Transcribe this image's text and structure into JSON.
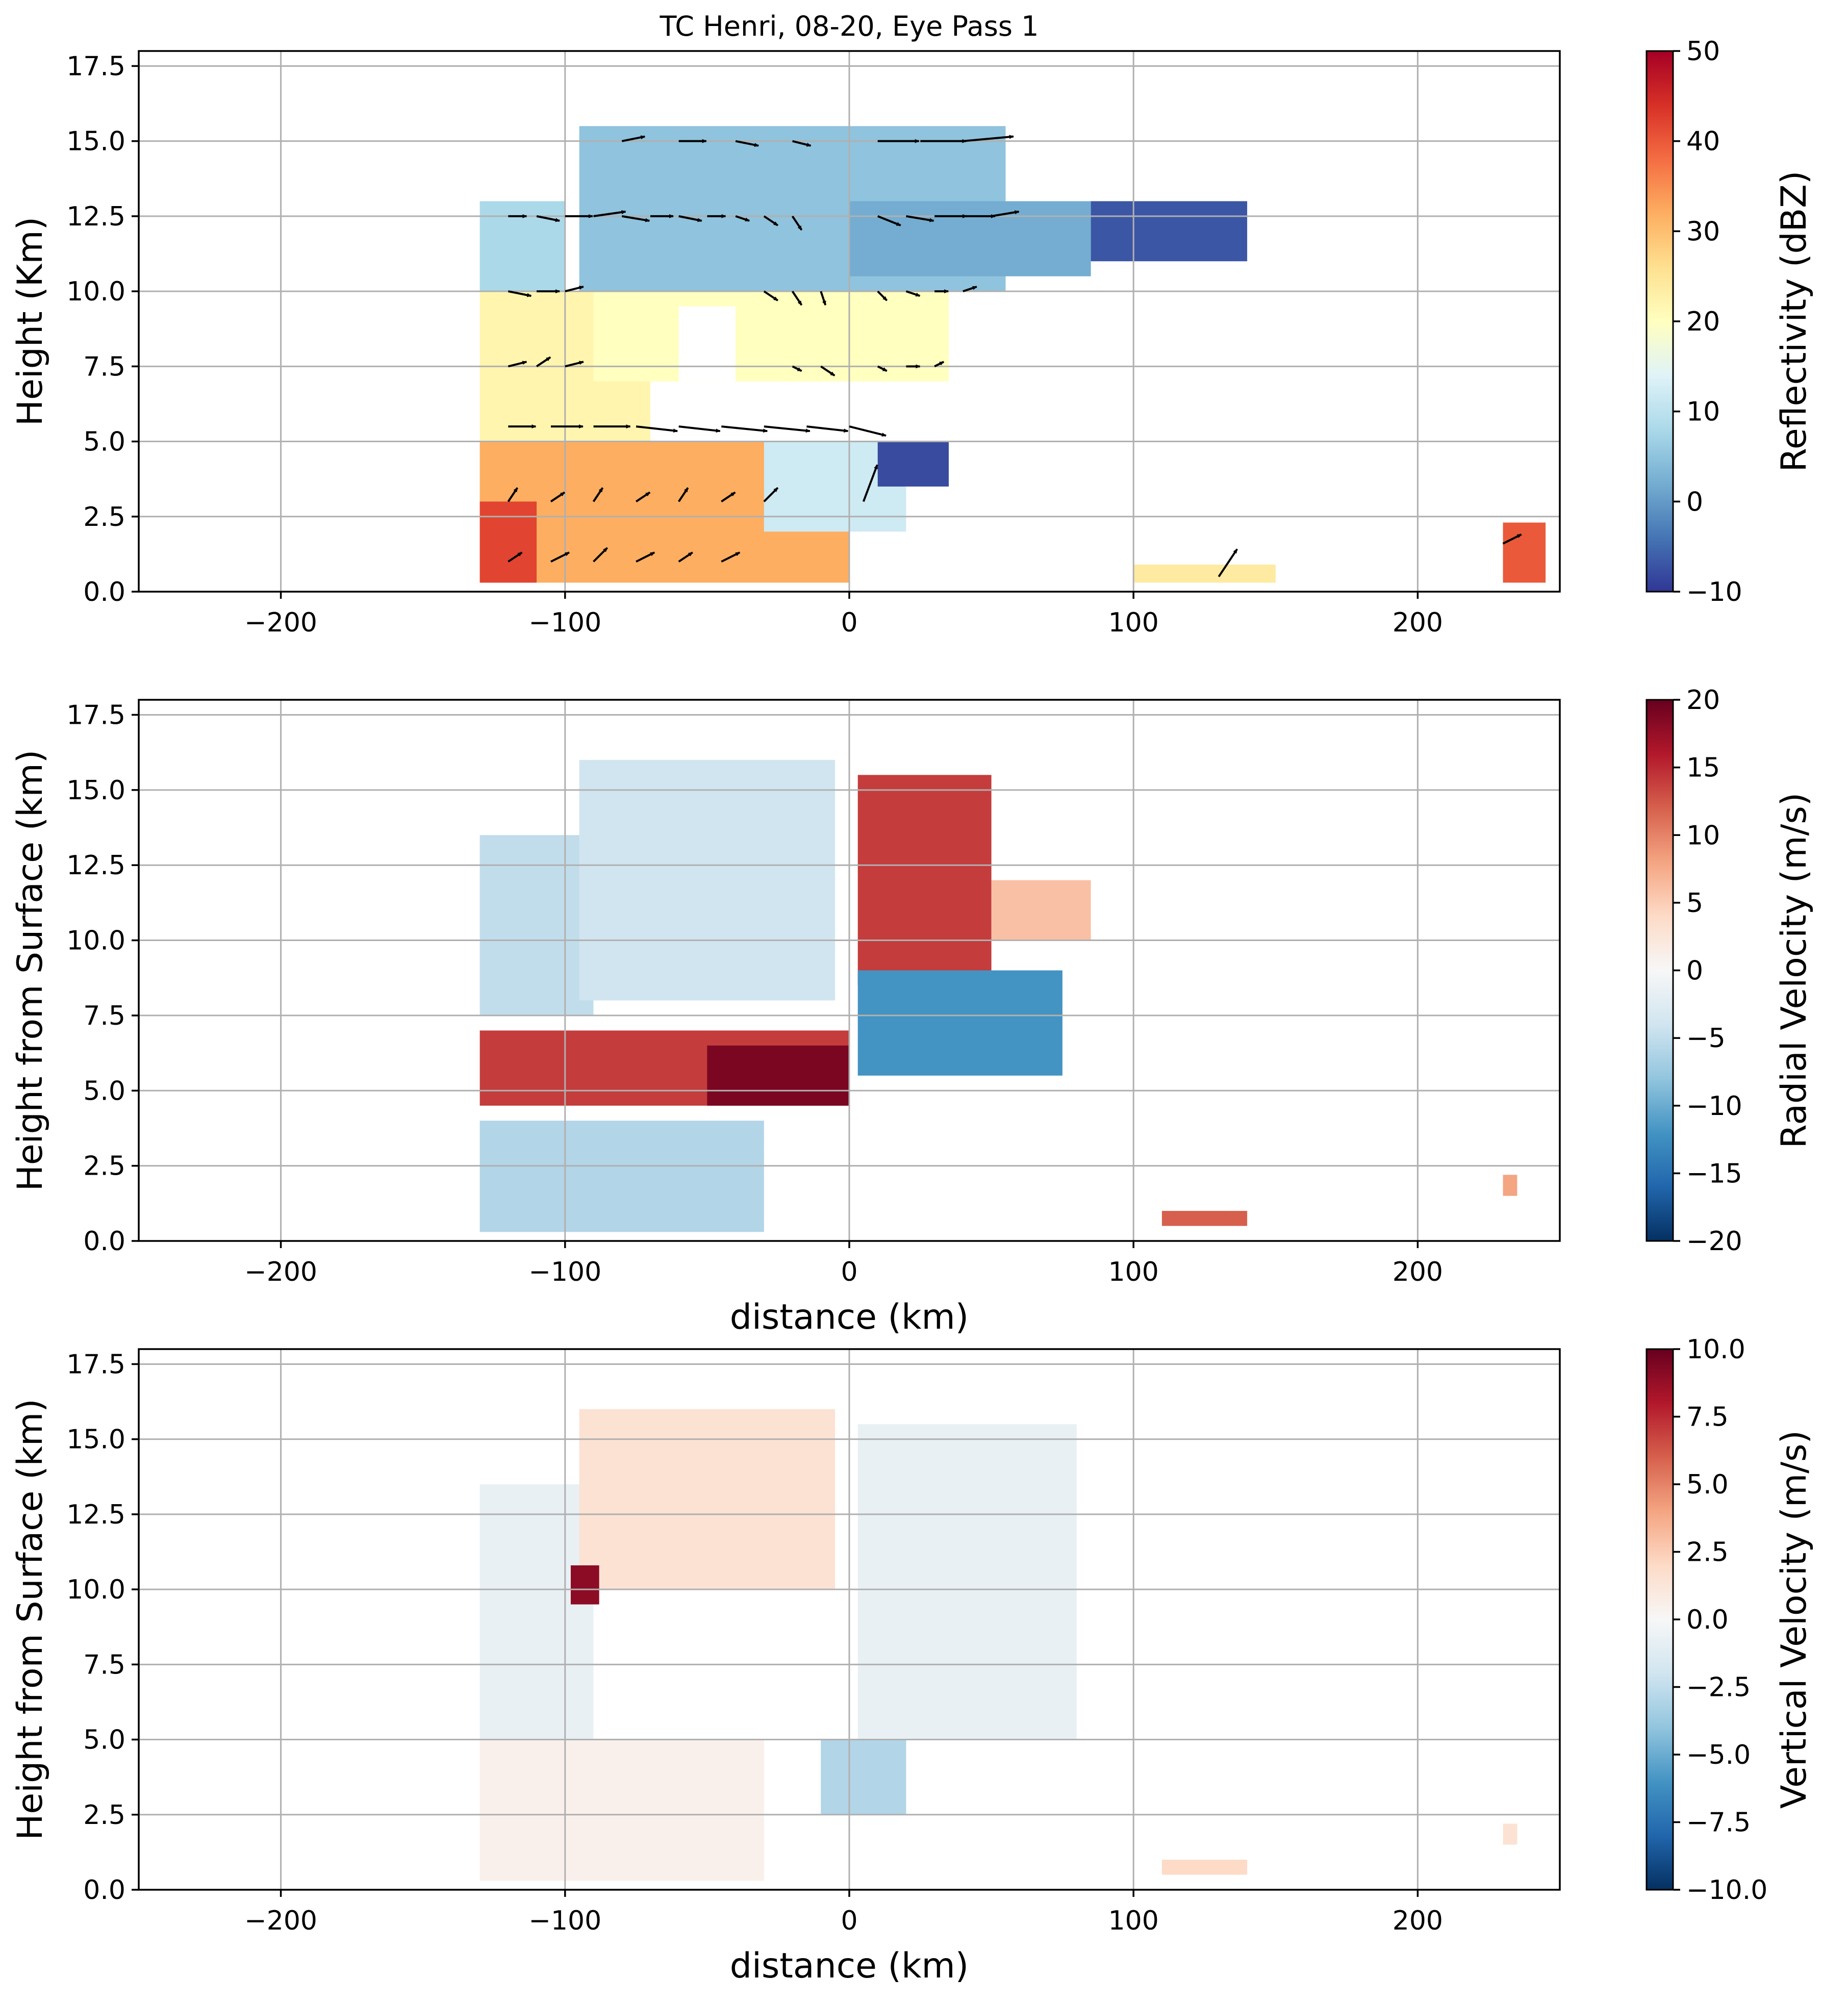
{
  "chart_data": [
    {
      "type": "heatmap",
      "title": "TC Henri, 08-20, Eye Pass 1",
      "xlabel": "",
      "ylabel": "Height (Km)",
      "xlim": [
        -250,
        250
      ],
      "ylim": [
        0,
        18
      ],
      "xticks": [
        -200,
        -100,
        0,
        100,
        200
      ],
      "yticks": [
        0.0,
        2.5,
        5.0,
        7.5,
        10.0,
        12.5,
        15.0,
        17.5
      ],
      "grid": true,
      "colormap": "RdYlBu_r",
      "colorbar": {
        "label": "Reflectivity (dBZ)",
        "range": [
          -10,
          50
        ],
        "ticks": [
          -10,
          0,
          10,
          20,
          30,
          40,
          50
        ]
      },
      "overlay": "wind vectors (quiver)",
      "summary": "Radar reflectivity cross-section; echoes extend from about -130 km to 50 km with highest values (40-50 dBZ) below 5 km on the left side; echo-free eye region near x=-60 km, y=7-9 km; sparse returns at 80-240 km near the surface.",
      "regions": [
        {
          "x": [
            -130,
            0
          ],
          "y": [
            0.3,
            5.0
          ],
          "value": 32
        },
        {
          "x": [
            -130,
            -110
          ],
          "y": [
            0.3,
            3.0
          ],
          "value": 42
        },
        {
          "x": [
            -130,
            -70
          ],
          "y": [
            5.0,
            10.0
          ],
          "value": 22
        },
        {
          "x": [
            -90,
            35
          ],
          "y": [
            7.0,
            10.0
          ],
          "value": 20
        },
        {
          "x": [
            -130,
            -100
          ],
          "y": [
            10.0,
            13.0
          ],
          "value": 8
        },
        {
          "x": [
            -95,
            55
          ],
          "y": [
            10.0,
            15.5
          ],
          "value": 5
        },
        {
          "x": [
            0,
            85
          ],
          "y": [
            10.5,
            13.0
          ],
          "value": 2
        },
        {
          "x": [
            85,
            140
          ],
          "y": [
            11.0,
            13.0
          ],
          "value": -7
        },
        {
          "x": [
            -30,
            20
          ],
          "y": [
            2.0,
            5.0
          ],
          "value": 12
        },
        {
          "x": [
            10,
            35
          ],
          "y": [
            3.5,
            5.0
          ],
          "value": -8
        },
        {
          "x": [
            -60,
            -40
          ],
          "y": [
            7.0,
            9.5
          ],
          "value": null
        },
        {
          "x": [
            230,
            245
          ],
          "y": [
            0.3,
            2.3
          ],
          "value": 40
        },
        {
          "x": [
            100,
            150
          ],
          "y": [
            0.3,
            0.9
          ],
          "value": 24
        }
      ]
    },
    {
      "type": "heatmap",
      "title": "",
      "xlabel": "distance (km)",
      "ylabel": "Height from Surface (km)",
      "xlim": [
        -250,
        250
      ],
      "ylim": [
        0,
        18
      ],
      "xticks": [
        -200,
        -100,
        0,
        100,
        200
      ],
      "yticks": [
        0.0,
        2.5,
        5.0,
        7.5,
        10.0,
        12.5,
        15.0,
        17.5
      ],
      "grid": true,
      "colormap": "RdBu_r",
      "colorbar": {
        "label": "Radial Velocity (m/s)",
        "range": [
          -20,
          20
        ],
        "ticks": [
          -20,
          -15,
          -10,
          -5,
          0,
          5,
          10,
          15,
          20
        ]
      },
      "summary": "Radial velocity; strong positive band (10-20 m/s) at 5-7 km height from -130 to 0 km, strong outflow above 8 km at 0-50 km, negative values near surface on the left and at 5-8 km just right of center.",
      "regions": [
        {
          "x": [
            -130,
            -30
          ],
          "y": [
            0.3,
            4.0
          ],
          "value": -6
        },
        {
          "x": [
            -130,
            0
          ],
          "y": [
            4.5,
            7.0
          ],
          "value": 14
        },
        {
          "x": [
            -50,
            0
          ],
          "y": [
            4.5,
            6.5
          ],
          "value": 19
        },
        {
          "x": [
            -130,
            -90
          ],
          "y": [
            7.5,
            13.5
          ],
          "value": -5
        },
        {
          "x": [
            -95,
            -5
          ],
          "y": [
            8.0,
            16.0
          ],
          "value": -4
        },
        {
          "x": [
            3,
            50
          ],
          "y": [
            8.5,
            15.5
          ],
          "value": 14
        },
        {
          "x": [
            3,
            75
          ],
          "y": [
            5.5,
            9.0
          ],
          "value": -12
        },
        {
          "x": [
            50,
            85
          ],
          "y": [
            10.0,
            12.0
          ],
          "value": 6
        },
        {
          "x": [
            110,
            140
          ],
          "y": [
            0.5,
            1.0
          ],
          "value": 12
        },
        {
          "x": [
            230,
            235
          ],
          "y": [
            1.5,
            2.2
          ],
          "value": 8
        }
      ]
    },
    {
      "type": "heatmap",
      "title": "",
      "xlabel": "distance (km)",
      "ylabel": "Height from Surface (km)",
      "xlim": [
        -250,
        250
      ],
      "ylim": [
        0,
        18
      ],
      "xticks": [
        -200,
        -100,
        0,
        100,
        200
      ],
      "yticks": [
        0.0,
        2.5,
        5.0,
        7.5,
        10.0,
        12.5,
        15.0,
        17.5
      ],
      "grid": true,
      "colormap": "RdBu_r",
      "colorbar": {
        "label": "Vertical Velocity (m/s)",
        "range": [
          -10,
          10
        ],
        "ticks": [
          -10.0,
          -7.5,
          -5.0,
          -2.5,
          0.0,
          2.5,
          5.0,
          7.5,
          10.0
        ]
      },
      "summary": "Vertical velocity mostly weak (-2 to +2 m/s) across the echo region; isolated strong updraft (~9 m/s) near x=-95 km, y=10 km; weak upward motion in upper levels left of center.",
      "regions": [
        {
          "x": [
            -130,
            -30
          ],
          "y": [
            0.3,
            5.0
          ],
          "value": 0.5
        },
        {
          "x": [
            -130,
            -90
          ],
          "y": [
            5.0,
            13.5
          ],
          "value": -0.8
        },
        {
          "x": [
            -95,
            -5
          ],
          "y": [
            10.0,
            16.0
          ],
          "value": 1.5
        },
        {
          "x": [
            3,
            80
          ],
          "y": [
            5.0,
            15.5
          ],
          "value": -0.8
        },
        {
          "x": [
            -98,
            -88
          ],
          "y": [
            9.5,
            10.8
          ],
          "value": 9
        },
        {
          "x": [
            -10,
            20
          ],
          "y": [
            2.5,
            5.0
          ],
          "value": -3
        },
        {
          "x": [
            110,
            140
          ],
          "y": [
            0.5,
            1.0
          ],
          "value": 2
        },
        {
          "x": [
            230,
            235
          ],
          "y": [
            1.5,
            2.2
          ],
          "value": 1.5
        }
      ]
    }
  ],
  "wind_vectors": [
    {
      "x": -120,
      "y": 12.5,
      "u": 4,
      "v": 0
    },
    {
      "x": -110,
      "y": 12.5,
      "u": 5,
      "v": -1
    },
    {
      "x": -100,
      "y": 12.5,
      "u": 6,
      "v": 0
    },
    {
      "x": -90,
      "y": 12.5,
      "u": 7,
      "v": 1
    },
    {
      "x": -80,
      "y": 12.5,
      "u": 6,
      "v": -1
    },
    {
      "x": -70,
      "y": 12.5,
      "u": 5,
      "v": 0
    },
    {
      "x": -60,
      "y": 12.5,
      "u": 5,
      "v": -1
    },
    {
      "x": -50,
      "y": 12.5,
      "u": 4,
      "v": 0
    },
    {
      "x": -40,
      "y": 12.5,
      "u": 3,
      "v": -1
    },
    {
      "x": -30,
      "y": 12.5,
      "u": 3,
      "v": -2
    },
    {
      "x": -20,
      "y": 12.5,
      "u": 2,
      "v": -3
    },
    {
      "x": 10,
      "y": 12.5,
      "u": 5,
      "v": -2
    },
    {
      "x": 20,
      "y": 12.5,
      "u": 6,
      "v": -1
    },
    {
      "x": 30,
      "y": 12.5,
      "u": 7,
      "v": 0
    },
    {
      "x": 40,
      "y": 12.5,
      "u": 7,
      "v": 0
    },
    {
      "x": 50,
      "y": 12.5,
      "u": 6,
      "v": 1
    },
    {
      "x": -80,
      "y": 15.0,
      "u": 5,
      "v": 1
    },
    {
      "x": -60,
      "y": 15.0,
      "u": 6,
      "v": 0
    },
    {
      "x": -40,
      "y": 15.0,
      "u": 5,
      "v": -1
    },
    {
      "x": -20,
      "y": 15.0,
      "u": 4,
      "v": -1
    },
    {
      "x": 10,
      "y": 15.0,
      "u": 9,
      "v": 0
    },
    {
      "x": 25,
      "y": 15.0,
      "u": 10,
      "v": 0
    },
    {
      "x": 40,
      "y": 15.0,
      "u": 11,
      "v": 1
    },
    {
      "x": -120,
      "y": 10.0,
      "u": 5,
      "v": -1
    },
    {
      "x": -110,
      "y": 10.0,
      "u": 5,
      "v": 0
    },
    {
      "x": -100,
      "y": 10.0,
      "u": 4,
      "v": 1
    },
    {
      "x": -30,
      "y": 10.0,
      "u": 3,
      "v": -2
    },
    {
      "x": -20,
      "y": 10.0,
      "u": 2,
      "v": -3
    },
    {
      "x": -10,
      "y": 10.0,
      "u": 1,
      "v": -3
    },
    {
      "x": 10,
      "y": 10.0,
      "u": 2,
      "v": -2
    },
    {
      "x": 20,
      "y": 10.0,
      "u": 3,
      "v": -1
    },
    {
      "x": 30,
      "y": 10.0,
      "u": 3,
      "v": 0
    },
    {
      "x": 40,
      "y": 10.0,
      "u": 3,
      "v": 1
    },
    {
      "x": -120,
      "y": 7.5,
      "u": 4,
      "v": 1
    },
    {
      "x": -110,
      "y": 7.5,
      "u": 3,
      "v": 2
    },
    {
      "x": -100,
      "y": 7.5,
      "u": 4,
      "v": 1
    },
    {
      "x": -20,
      "y": 7.5,
      "u": 2,
      "v": -1
    },
    {
      "x": -10,
      "y": 7.5,
      "u": 3,
      "v": -2
    },
    {
      "x": 10,
      "y": 7.5,
      "u": 2,
      "v": -1
    },
    {
      "x": 20,
      "y": 7.5,
      "u": 3,
      "v": 0
    },
    {
      "x": 30,
      "y": 7.5,
      "u": 2,
      "v": 1
    },
    {
      "x": -120,
      "y": 5.5,
      "u": 6,
      "v": 0
    },
    {
      "x": -105,
      "y": 5.5,
      "u": 7,
      "v": 0
    },
    {
      "x": -90,
      "y": 5.5,
      "u": 8,
      "v": 0
    },
    {
      "x": -75,
      "y": 5.5,
      "u": 9,
      "v": -1
    },
    {
      "x": -60,
      "y": 5.5,
      "u": 9,
      "v": -1
    },
    {
      "x": -45,
      "y": 5.5,
      "u": 10,
      "v": -1
    },
    {
      "x": -30,
      "y": 5.5,
      "u": 10,
      "v": -1
    },
    {
      "x": -15,
      "y": 5.5,
      "u": 9,
      "v": -1
    },
    {
      "x": 0,
      "y": 5.5,
      "u": 8,
      "v": -2
    },
    {
      "x": -120,
      "y": 3.0,
      "u": 2,
      "v": 3
    },
    {
      "x": -105,
      "y": 3.0,
      "u": 3,
      "v": 2
    },
    {
      "x": -90,
      "y": 3.0,
      "u": 2,
      "v": 3
    },
    {
      "x": -75,
      "y": 3.0,
      "u": 3,
      "v": 2
    },
    {
      "x": -60,
      "y": 3.0,
      "u": 2,
      "v": 3
    },
    {
      "x": -45,
      "y": 3.0,
      "u": 3,
      "v": 2
    },
    {
      "x": -30,
      "y": 3.0,
      "u": 3,
      "v": 3
    },
    {
      "x": 5,
      "y": 3.0,
      "u": 3,
      "v": 8
    },
    {
      "x": -120,
      "y": 1.0,
      "u": 3,
      "v": 2
    },
    {
      "x": -105,
      "y": 1.0,
      "u": 4,
      "v": 2
    },
    {
      "x": -90,
      "y": 1.0,
      "u": 3,
      "v": 3
    },
    {
      "x": -75,
      "y": 1.0,
      "u": 4,
      "v": 2
    },
    {
      "x": -60,
      "y": 1.0,
      "u": 3,
      "v": 2
    },
    {
      "x": -45,
      "y": 1.0,
      "u": 4,
      "v": 2
    },
    {
      "x": 130,
      "y": 0.5,
      "u": 4,
      "v": 6
    },
    {
      "x": 230,
      "y": 1.6,
      "u": 4,
      "v": 2
    }
  ]
}
